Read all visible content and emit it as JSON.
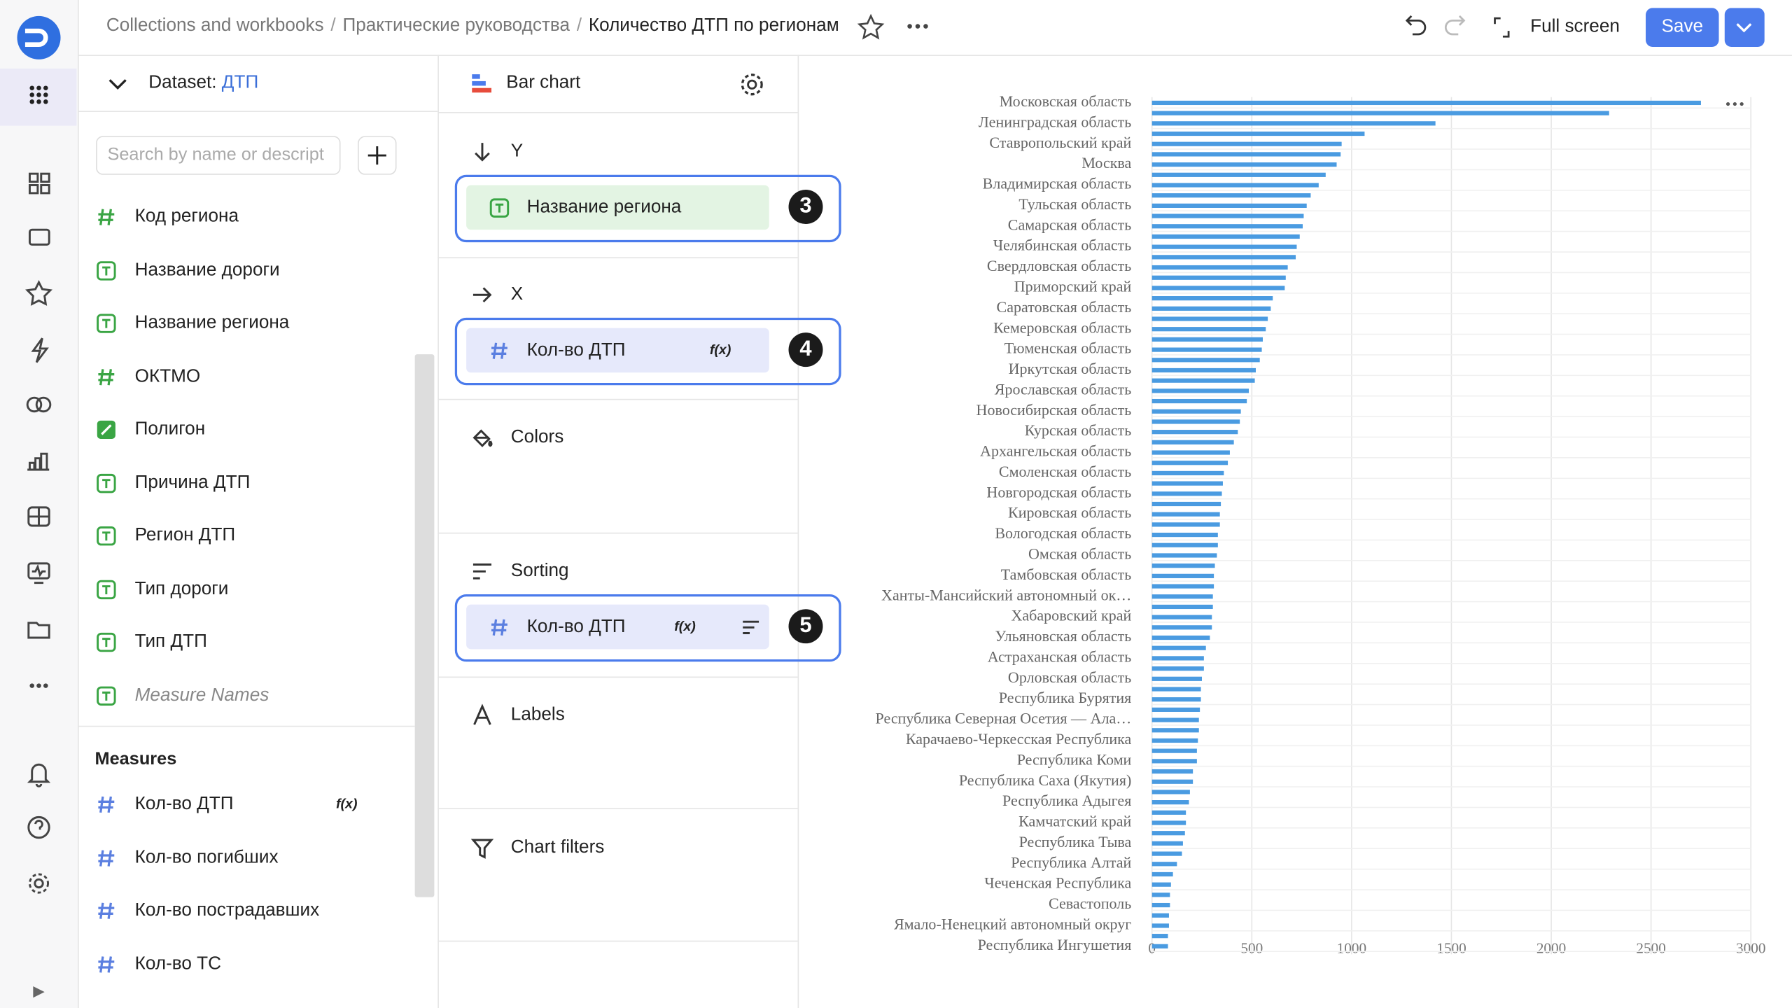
{
  "header": {
    "breadcrumbs": [
      "Collections and workbooks",
      "Практические руководства",
      "Количество ДТП по регионам"
    ],
    "separator": "/",
    "full_screen": "Full screen",
    "save": "Save"
  },
  "dataset": {
    "label": "Dataset:",
    "name": "ДТП",
    "search_placeholder": "Search by name or descript"
  },
  "formula_label": "f(x)",
  "dimensions": [
    {
      "name": "Код региона",
      "type": "number"
    },
    {
      "name": "Название дороги",
      "type": "text"
    },
    {
      "name": "Название региона",
      "type": "text"
    },
    {
      "name": "ОКТМО",
      "type": "number"
    },
    {
      "name": "Полигон",
      "type": "geo"
    },
    {
      "name": "Причина ДТП",
      "type": "text"
    },
    {
      "name": "Регион ДТП",
      "type": "text"
    },
    {
      "name": "Тип дороги",
      "type": "text"
    },
    {
      "name": "Тип ДТП",
      "type": "text"
    },
    {
      "name": "Measure Names",
      "type": "text",
      "italic": true
    }
  ],
  "measures_title": "Measures",
  "measures": [
    {
      "name": "Кол-во ДТП",
      "formula": true
    },
    {
      "name": "Кол-во погибших",
      "formula": false
    },
    {
      "name": "Кол-во пострадавших",
      "formula": false
    },
    {
      "name": "Кол-во ТС",
      "formula": false
    }
  ],
  "wizard": {
    "chart_type": "Bar chart",
    "sections": [
      {
        "title": "Y",
        "icon": "down",
        "field": {
          "name": "Название региона",
          "type": "text",
          "formula": false,
          "sort": false
        },
        "marker": "3"
      },
      {
        "title": "X",
        "icon": "right",
        "field": {
          "name": "Кол-во ДТП",
          "type": "number",
          "formula": true,
          "sort": false
        },
        "marker": "4"
      },
      {
        "title": "Colors",
        "icon": "colors"
      },
      {
        "title": "Sorting",
        "icon": "sort",
        "field": {
          "name": "Кол-во ДТП",
          "type": "number",
          "formula": true,
          "sort": true
        },
        "marker": "5"
      },
      {
        "title": "Labels",
        "icon": "labels"
      },
      {
        "title": "Chart filters",
        "icon": "filter"
      }
    ]
  },
  "chart_data": {
    "type": "bar",
    "orientation": "horizontal",
    "color": "#4a9be1",
    "grid": true,
    "categories": [
      "Московская область",
      null,
      "Ленинградская область",
      null,
      "Ставропольский край",
      null,
      "Москва",
      null,
      "Владимирская область",
      null,
      "Тульская область",
      null,
      "Самарская область",
      null,
      "Челябинская область",
      null,
      "Свердловская область",
      null,
      "Приморский край",
      null,
      "Саратовская область",
      null,
      "Кемеровская область",
      null,
      "Тюменская область",
      null,
      "Иркутская область",
      null,
      "Ярославская область",
      null,
      "Новосибирская область",
      null,
      "Курская область",
      null,
      "Архангельская область",
      null,
      "Смоленская область",
      null,
      "Новгородская область",
      null,
      "Кировская область",
      null,
      "Вологодская область",
      null,
      "Омская область",
      null,
      "Тамбовская область",
      null,
      "Ханты-Мансийский автономный ок…",
      null,
      "Хабаровский край",
      null,
      "Ульяновская область",
      null,
      "Астраханская область",
      null,
      "Орловская область",
      null,
      "Республика Бурятия",
      null,
      "Республика Северная Осетия — Ала…",
      null,
      "Карачаево-Черкесская Республика",
      null,
      "Республика Коми",
      null,
      "Республика Саха (Якутия)",
      null,
      "Республика Адыгея",
      null,
      "Камчатский край",
      null,
      "Республика Тыва",
      null,
      "Республика Алтай",
      null,
      "Чеченская Республика",
      null,
      "Севастополь",
      null,
      "Ямало-Ненецкий автономный округ",
      null,
      "Республика Ингушетия"
    ],
    "values": [
      2750,
      2290,
      1420,
      1065,
      950,
      945,
      925,
      870,
      835,
      795,
      775,
      760,
      755,
      740,
      725,
      720,
      680,
      670,
      665,
      605,
      595,
      580,
      570,
      555,
      550,
      540,
      520,
      515,
      485,
      475,
      445,
      440,
      430,
      410,
      390,
      380,
      360,
      355,
      350,
      345,
      340,
      340,
      330,
      330,
      325,
      315,
      310,
      310,
      305,
      305,
      300,
      300,
      290,
      270,
      260,
      260,
      250,
      245,
      245,
      240,
      235,
      235,
      230,
      225,
      225,
      205,
      205,
      190,
      185,
      170,
      170,
      165,
      155,
      150,
      125,
      105,
      95,
      90,
      90,
      85,
      85,
      80,
      80
    ],
    "xlim": [
      0,
      3000
    ],
    "xticks": [
      0,
      500,
      1000,
      1500,
      2000,
      2500,
      3000
    ]
  }
}
